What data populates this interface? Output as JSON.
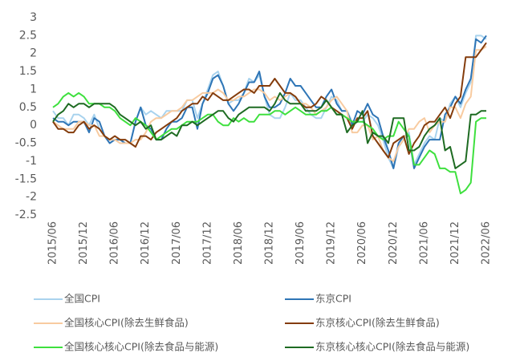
{
  "chart_data": {
    "type": "line",
    "categories": [
      "2015/06",
      null,
      null,
      null,
      null,
      null,
      "2015/12",
      null,
      null,
      null,
      null,
      null,
      "2016/06",
      null,
      null,
      null,
      null,
      null,
      "2016/12",
      null,
      null,
      null,
      null,
      null,
      "2017/06",
      null,
      null,
      null,
      null,
      null,
      "2017/12",
      null,
      null,
      null,
      null,
      null,
      "2018/06",
      null,
      null,
      null,
      null,
      null,
      "2018/12",
      null,
      null,
      null,
      null,
      null,
      "2019/06",
      null,
      null,
      null,
      null,
      null,
      "2019/12",
      null,
      null,
      null,
      null,
      null,
      "2020/06",
      null,
      null,
      null,
      null,
      null,
      "2020/12",
      null,
      null,
      null,
      null,
      null,
      "2021/06",
      null,
      null,
      null,
      null,
      null,
      "2021/12",
      null,
      null,
      null,
      null,
      null,
      "2022/06"
    ],
    "series": [
      {
        "name": "全国CPI",
        "color": "#a9d3ee",
        "values": [
          0.4,
          0.2,
          0.2,
          0.0,
          0.3,
          0.3,
          0.2,
          0.0,
          0.3,
          -0.1,
          -0.3,
          -0.4,
          -0.4,
          -0.4,
          -0.5,
          -0.5,
          0.1,
          0.5,
          0.3,
          0.4,
          0.3,
          0.2,
          0.4,
          0.4,
          0.4,
          0.4,
          0.7,
          0.7,
          0.2,
          0.6,
          1.0,
          1.4,
          1.5,
          1.1,
          0.6,
          0.7,
          0.7,
          0.9,
          1.3,
          1.2,
          1.4,
          0.8,
          0.3,
          0.2,
          0.2,
          0.5,
          0.9,
          0.7,
          0.7,
          0.5,
          0.3,
          0.2,
          0.2,
          0.5,
          0.8,
          0.7,
          0.4,
          0.4,
          0.1,
          0.1,
          0.1,
          0.3,
          0.2,
          0.0,
          -0.4,
          -0.9,
          -1.2,
          -0.6,
          -0.4,
          -0.2,
          -1.1,
          -0.8,
          -0.5,
          -0.3,
          -0.4,
          0.2,
          0.1,
          0.6,
          0.8,
          0.5,
          0.9,
          1.2,
          2.5,
          2.5,
          2.4
        ]
      },
      {
        "name": "东京CPI",
        "color": "#2e75b6",
        "values": [
          0.2,
          0.1,
          0.1,
          0.0,
          0.1,
          0.1,
          0.1,
          -0.2,
          0.2,
          0.1,
          -0.3,
          -0.5,
          -0.4,
          -0.4,
          -0.5,
          -0.5,
          0.1,
          0.5,
          0.0,
          -0.1,
          -0.4,
          -0.4,
          -0.1,
          0.1,
          0.1,
          0.2,
          0.5,
          0.5,
          -0.1,
          0.6,
          0.9,
          1.3,
          1.4,
          1.1,
          0.6,
          0.4,
          0.6,
          0.9,
          1.2,
          1.2,
          1.5,
          0.8,
          0.5,
          0.5,
          0.6,
          0.9,
          1.3,
          1.1,
          1.1,
          0.9,
          0.7,
          0.5,
          0.5,
          0.8,
          1.0,
          0.6,
          0.4,
          0.4,
          0.0,
          0.4,
          0.3,
          0.6,
          0.3,
          0.2,
          -0.3,
          -0.7,
          -1.2,
          -0.5,
          -0.3,
          -0.3,
          -1.2,
          -0.9,
          -0.6,
          -0.4,
          -0.4,
          -0.4,
          0.3,
          0.5,
          0.8,
          0.6,
          1.0,
          1.3,
          2.4,
          2.3,
          2.5
        ]
      },
      {
        "name": "全国核心CPI(除去生鲜食品)",
        "color": "#f8cba0",
        "values": [
          0.1,
          0.0,
          -0.1,
          -0.1,
          -0.1,
          0.1,
          0.1,
          0.0,
          0.0,
          -0.3,
          -0.3,
          -0.4,
          -0.4,
          -0.5,
          -0.5,
          -0.5,
          -0.4,
          -0.4,
          -0.2,
          0.1,
          0.2,
          0.2,
          0.3,
          0.4,
          0.4,
          0.5,
          0.7,
          0.7,
          0.8,
          0.9,
          0.9,
          0.9,
          1.0,
          0.9,
          0.7,
          0.7,
          0.8,
          0.8,
          0.9,
          1.0,
          1.0,
          0.9,
          0.7,
          0.8,
          0.7,
          0.8,
          0.9,
          0.8,
          0.6,
          0.6,
          0.5,
          0.3,
          0.4,
          0.5,
          0.7,
          0.8,
          0.6,
          0.4,
          -0.2,
          -0.2,
          0.0,
          0.0,
          -0.4,
          -0.3,
          -0.7,
          -0.9,
          -1.0,
          -0.6,
          -0.4,
          -0.1,
          -0.1,
          0.1,
          0.2,
          -0.2,
          0.0,
          0.1,
          0.1,
          0.5,
          0.5,
          0.2,
          0.6,
          0.8,
          2.1,
          2.1,
          2.2
        ]
      },
      {
        "name": "东京核心CPI(除去生鲜食品)",
        "color": "#843c0c",
        "values": [
          0.1,
          -0.1,
          -0.1,
          -0.2,
          -0.2,
          0.0,
          0.1,
          -0.1,
          0.0,
          -0.1,
          -0.3,
          -0.4,
          -0.3,
          -0.4,
          -0.4,
          -0.5,
          -0.6,
          -0.3,
          -0.3,
          -0.4,
          -0.2,
          -0.1,
          0.0,
          0.1,
          0.2,
          0.4,
          0.5,
          0.6,
          0.6,
          0.8,
          0.7,
          0.9,
          0.8,
          0.7,
          0.7,
          0.8,
          0.9,
          1.0,
          1.0,
          0.9,
          1.1,
          1.1,
          1.1,
          1.3,
          1.1,
          0.9,
          0.9,
          0.8,
          0.6,
          0.5,
          0.5,
          0.6,
          0.8,
          0.7,
          0.5,
          0.4,
          0.3,
          0.2,
          -0.1,
          0.2,
          0.2,
          0.4,
          -0.3,
          -0.5,
          -0.7,
          -0.9,
          -0.5,
          -0.4,
          -0.3,
          -0.8,
          -0.5,
          -0.3,
          0.0,
          0.1,
          0.1,
          0.3,
          0.5,
          0.2,
          0.6,
          0.8,
          1.9,
          1.9,
          1.9,
          2.1,
          2.3
        ]
      },
      {
        "name": "全国核心核心CPI(除去食品与能源)",
        "color": "#3ee03e",
        "values": [
          0.5,
          0.6,
          0.8,
          0.9,
          0.8,
          0.9,
          0.8,
          0.6,
          0.6,
          0.6,
          0.5,
          0.5,
          0.4,
          0.2,
          0.1,
          0.0,
          0.2,
          0.1,
          0.0,
          -0.2,
          -0.4,
          -0.3,
          -0.2,
          -0.1,
          -0.1,
          0.0,
          0.1,
          0.1,
          0.1,
          0.2,
          0.3,
          0.3,
          0.1,
          0.0,
          0.0,
          0.2,
          0.1,
          0.2,
          0.1,
          0.1,
          0.3,
          0.3,
          0.3,
          0.4,
          0.4,
          0.3,
          0.4,
          0.5,
          0.4,
          0.3,
          0.3,
          0.3,
          0.4,
          0.4,
          0.5,
          0.3,
          0.3,
          0.2,
          0.1,
          0.1,
          0.1,
          0.0,
          -0.1,
          -0.3,
          -0.4,
          -0.3,
          -0.3,
          0.1,
          -0.1,
          -0.3,
          -1.1,
          -1.1,
          -0.9,
          -0.7,
          -0.8,
          -1.2,
          -1.2,
          -1.3,
          -1.3,
          -1.9,
          -1.8,
          -1.6,
          0.1,
          0.2,
          0.2
        ]
      },
      {
        "name": "东京核心核心CPI(除去食品与能源)",
        "color": "#1e6b22",
        "values": [
          0.1,
          0.3,
          0.4,
          0.6,
          0.5,
          0.6,
          0.6,
          0.5,
          0.6,
          0.6,
          0.6,
          0.6,
          0.5,
          0.3,
          0.2,
          0.1,
          0.0,
          0.1,
          -0.1,
          0.0,
          -0.4,
          -0.4,
          -0.3,
          -0.2,
          -0.3,
          0.0,
          0.0,
          0.1,
          0.0,
          0.1,
          0.2,
          0.3,
          0.4,
          0.4,
          0.2,
          0.1,
          0.3,
          0.4,
          0.5,
          0.5,
          0.5,
          0.5,
          0.4,
          0.6,
          0.9,
          0.7,
          0.6,
          0.6,
          0.6,
          0.4,
          0.4,
          0.4,
          0.5,
          0.7,
          0.5,
          0.3,
          0.3,
          -0.2,
          0.0,
          0.1,
          0.4,
          -0.5,
          -0.2,
          -0.3,
          -0.3,
          -0.5,
          0.2,
          0.2,
          0.2,
          -0.7,
          -0.7,
          -0.6,
          -0.3,
          -0.1,
          0.0,
          0.2,
          -0.7,
          -0.6,
          -1.2,
          -1.1,
          -1.0,
          0.3,
          0.3,
          0.4,
          0.4
        ]
      }
    ],
    "ylim": [
      -2.5,
      3
    ],
    "yticks": [
      3,
      2.5,
      2,
      1.5,
      1,
      0.5,
      0,
      -0.5,
      -1,
      -1.5,
      -2,
      -2.5
    ],
    "grid": false
  }
}
